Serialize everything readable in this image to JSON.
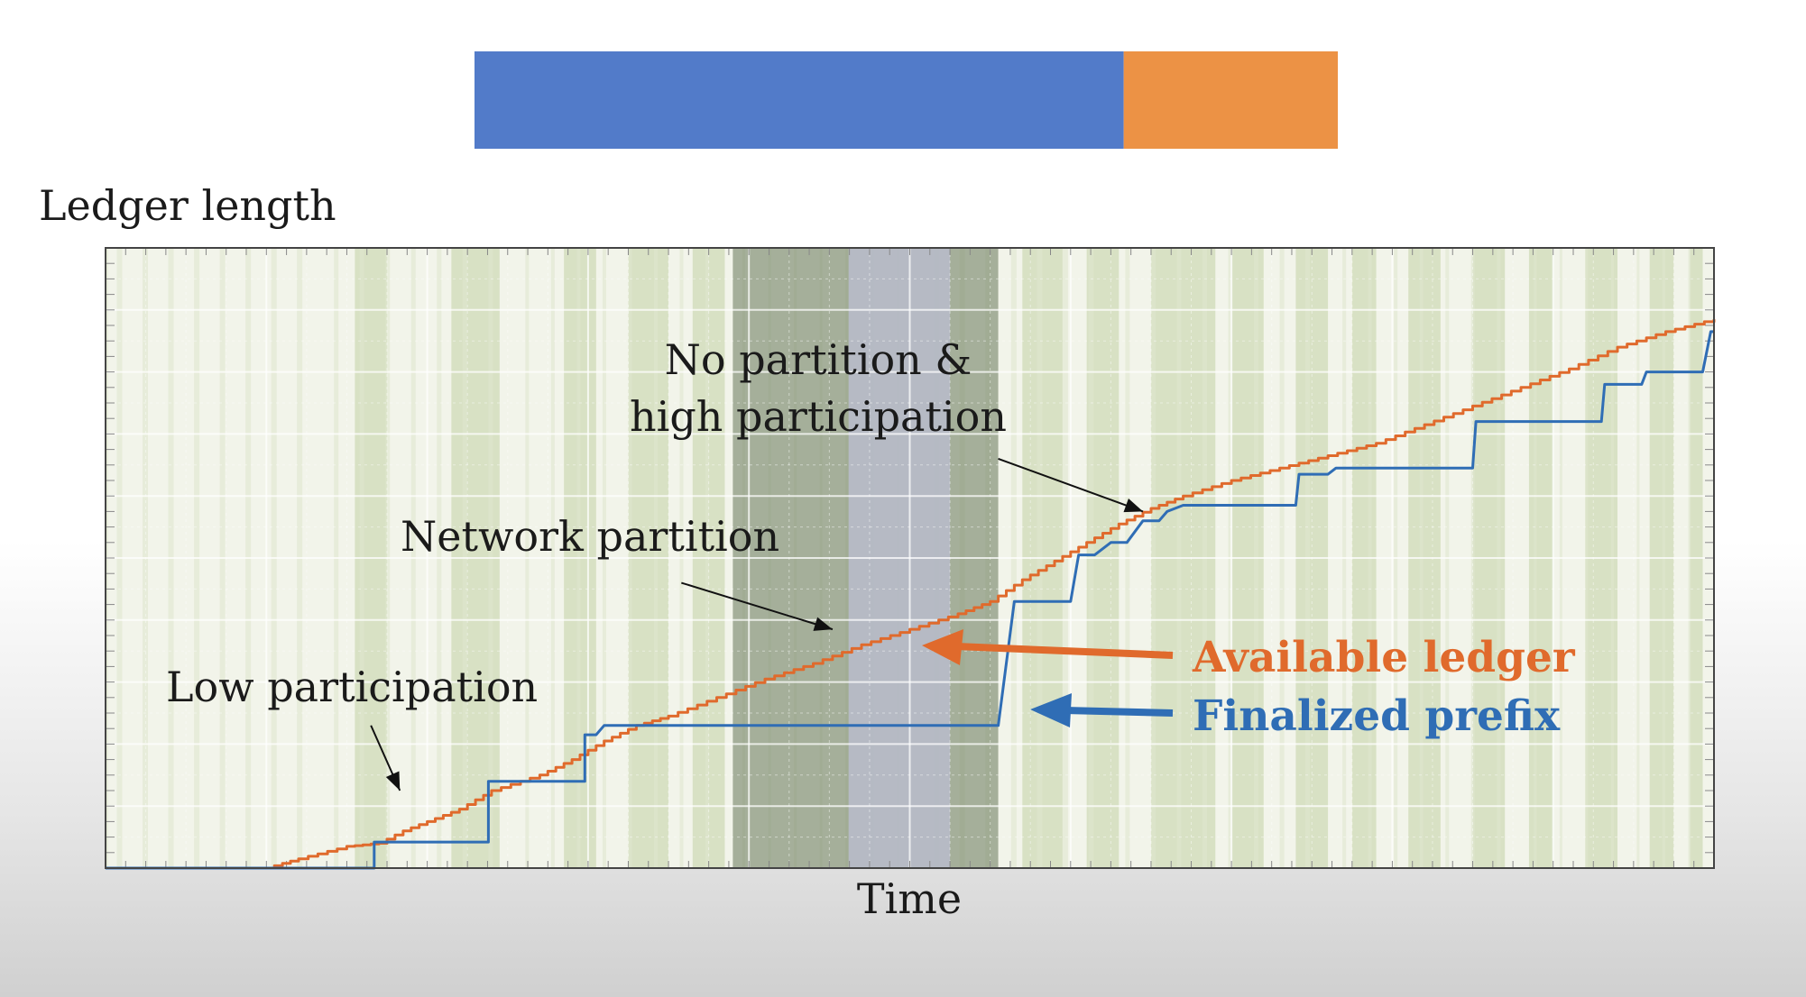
{
  "top_bar": {
    "blue_fraction": 0.752,
    "blue_color": "#527BC9",
    "orange_color": "#EC9245"
  },
  "chart_data": {
    "type": "line",
    "ylabel": "Ledger length",
    "xlabel": "Time",
    "xlim": [
      0,
      100
    ],
    "ylim": [
      0,
      100
    ],
    "grid": true,
    "background_colors": {
      "green_band": "#cdd9b3",
      "dark_band": "#7b8a6e",
      "gray_band": "#b9bccb"
    },
    "regions": {
      "partition": [
        39,
        55.5
      ],
      "partition_light": [
        46.2,
        52.5
      ],
      "low_participation_bands": [
        [
          15.5,
          17.5
        ],
        [
          21.5,
          24.5
        ],
        [
          28.5,
          30.5
        ],
        [
          32.5,
          35
        ],
        [
          36.5,
          38.5
        ],
        [
          57,
          59.5
        ],
        [
          61,
          63
        ],
        [
          65,
          69
        ],
        [
          70,
          72
        ],
        [
          74,
          76
        ],
        [
          77.5,
          79
        ],
        [
          81,
          83
        ],
        [
          85,
          87
        ],
        [
          88.5,
          90
        ],
        [
          92,
          94
        ],
        [
          96,
          97.5
        ],
        [
          98.5,
          99.3
        ]
      ]
    },
    "annotations": [
      {
        "text": "Low participation",
        "arrow_from": [
          16.5,
          23
        ],
        "arrow_to": [
          18.3,
          12.5
        ]
      },
      {
        "text": "Network partition",
        "arrow_from": [
          35.8,
          46
        ],
        "arrow_to": [
          45.2,
          38.5
        ]
      },
      {
        "text": "No partition &",
        "text2": "high participation",
        "arrow_from": [
          55.5,
          66
        ],
        "arrow_to": [
          64.5,
          57.5
        ]
      }
    ],
    "series": [
      {
        "name": "Available ledger",
        "color": "#E06A2C",
        "x": [
          0,
          10,
          12,
          15,
          17,
          18.5,
          20,
          22,
          24,
          27,
          29,
          31,
          33,
          35,
          38,
          41,
          44,
          47,
          50,
          53,
          55,
          57,
          59,
          61,
          63,
          65,
          67,
          70,
          73,
          76,
          79,
          82,
          85,
          88,
          91,
          94,
          97,
          100
        ],
        "values": [
          0,
          0,
          1.5,
          3.5,
          4,
          6,
          7.5,
          9.5,
          12.5,
          15,
          17.5,
          20.5,
          23,
          24.5,
          27.5,
          30.5,
          33,
          36,
          38.5,
          41,
          43,
          46.5,
          49.5,
          52.5,
          55.5,
          58,
          60,
          62.5,
          64.5,
          66.5,
          68.5,
          71.5,
          74.5,
          77.5,
          80.5,
          84,
          86.5,
          88.5
        ]
      },
      {
        "name": "Finalized prefix",
        "color": "#2F6DB5",
        "x": [
          0,
          10,
          16.7,
          16.7,
          23.8,
          23.8,
          29.8,
          29.8,
          30.5,
          31,
          50,
          52.2,
          55.5,
          56.5,
          56.5,
          60,
          60.5,
          61.5,
          62.5,
          63.5,
          64.5,
          65.5,
          66,
          67,
          69,
          72,
          74,
          74.2,
          76,
          76.5,
          77.5,
          78,
          85,
          85.2,
          88,
          91,
          93,
          93.2,
          95.5,
          95.8,
          99.3,
          99.8,
          100
        ],
        "values": [
          0,
          0,
          0,
          4.2,
          4.2,
          14,
          14,
          21.5,
          21.5,
          23,
          23,
          23,
          23,
          43,
          43,
          43,
          50.5,
          50.5,
          52.5,
          52.5,
          56,
          56,
          57.5,
          58.5,
          58.5,
          58.5,
          58.5,
          63.5,
          63.5,
          64.5,
          64.5,
          64.5,
          64.5,
          72,
          72,
          72,
          72,
          78,
          78,
          80,
          80,
          86.5,
          86.5
        ]
      }
    ],
    "legend": [
      {
        "text": "Available ledger",
        "color": "#E06A2C"
      },
      {
        "text": "Finalized prefix",
        "color": "#2F6DB5"
      }
    ]
  }
}
